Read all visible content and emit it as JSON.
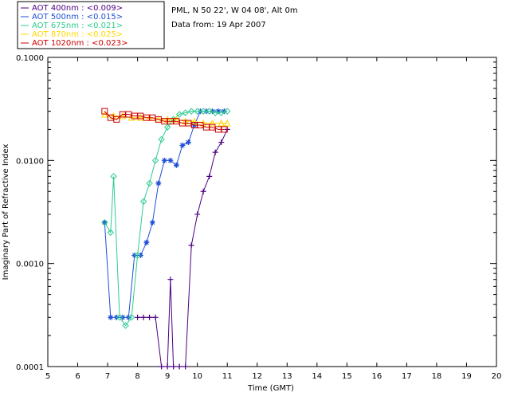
{
  "chart_data": {
    "type": "line",
    "xlabel": "Time (GMT)",
    "ylabel": "Imaginary Part of Refractive Index",
    "xlim": [
      5,
      20
    ],
    "ylim": [
      0.0001,
      0.1
    ],
    "yscale": "log",
    "x_ticks": [
      "5",
      "6",
      "7",
      "8",
      "9",
      "10",
      "11",
      "12",
      "13",
      "14",
      "15",
      "16",
      "17",
      "18",
      "19",
      "20"
    ],
    "y_ticks": [
      "0.1000",
      "0.0100",
      "0.0010",
      "0.0001"
    ],
    "info": [
      "PML, N 50 22', W 04 08', Alt 0m",
      "Data from: 19 Apr 2007"
    ],
    "series": [
      {
        "name": "AOT  400nm : <0.009>",
        "color": "#4b0082",
        "marker": "plus",
        "x": [
          8.0,
          8.2,
          8.4,
          8.6,
          8.8,
          9.0,
          9.1,
          9.2,
          9.4,
          9.6,
          9.8,
          10.0,
          10.2,
          10.4,
          10.6,
          10.8,
          11.0
        ],
        "y": [
          0.0003,
          0.0003,
          0.0003,
          0.0003,
          0.0001,
          0.0001,
          0.0007,
          0.0001,
          0.0001,
          0.0001,
          0.0015,
          0.003,
          0.005,
          0.007,
          0.012,
          0.015,
          0.02
        ]
      },
      {
        "name": "AOT  500nm : <0.015>",
        "color": "#1f4fd8",
        "marker": "star",
        "x": [
          6.9,
          7.1,
          7.3,
          7.5,
          7.7,
          7.9,
          8.1,
          8.3,
          8.5,
          8.7,
          8.9,
          9.1,
          9.3,
          9.5,
          9.7,
          9.9,
          10.1,
          10.3,
          10.5,
          10.7,
          10.9
        ],
        "y": [
          0.0025,
          0.0003,
          0.0003,
          0.0003,
          0.0003,
          0.0012,
          0.0012,
          0.0016,
          0.0025,
          0.006,
          0.01,
          0.01,
          0.009,
          0.014,
          0.015,
          0.022,
          0.03,
          0.03,
          0.03,
          0.03,
          0.03
        ]
      },
      {
        "name": "AOT  675nm : <0.021>",
        "color": "#2ecc8f",
        "marker": "diamond",
        "x": [
          6.9,
          7.1,
          7.2,
          7.4,
          7.6,
          7.8,
          8.0,
          8.2,
          8.4,
          8.6,
          8.8,
          9.0,
          9.2,
          9.4,
          9.6,
          9.8,
          10.0,
          10.2,
          10.4,
          10.6,
          10.8,
          11.0
        ],
        "y": [
          0.0025,
          0.002,
          0.007,
          0.0003,
          0.00025,
          0.0003,
          0.0012,
          0.004,
          0.006,
          0.01,
          0.016,
          0.021,
          0.025,
          0.028,
          0.029,
          0.03,
          0.03,
          0.03,
          0.03,
          0.029,
          0.029,
          0.03
        ]
      },
      {
        "name": "AOT  870nm : <0.025>",
        "color": "#ffd700",
        "marker": "triangle",
        "x": [
          6.9,
          7.2,
          7.5,
          7.8,
          8.1,
          8.4,
          8.7,
          9.0,
          9.3,
          9.6,
          9.9,
          10.2,
          10.5,
          10.8,
          11.0
        ],
        "y": [
          0.028,
          0.027,
          0.027,
          0.026,
          0.026,
          0.026,
          0.025,
          0.025,
          0.025,
          0.024,
          0.024,
          0.023,
          0.023,
          0.023,
          0.023
        ]
      },
      {
        "name": "AOT 1020nm : <0.023>",
        "color": "#cc0000",
        "marker": "square",
        "x": [
          6.9,
          7.1,
          7.3,
          7.5,
          7.7,
          7.9,
          8.1,
          8.3,
          8.5,
          8.7,
          8.9,
          9.1,
          9.3,
          9.5,
          9.7,
          9.9,
          10.1,
          10.3,
          10.5,
          10.7,
          10.9
        ],
        "y": [
          0.03,
          0.026,
          0.025,
          0.028,
          0.028,
          0.027,
          0.027,
          0.026,
          0.026,
          0.025,
          0.024,
          0.024,
          0.024,
          0.023,
          0.023,
          0.022,
          0.022,
          0.021,
          0.021,
          0.02,
          0.02
        ]
      }
    ]
  }
}
